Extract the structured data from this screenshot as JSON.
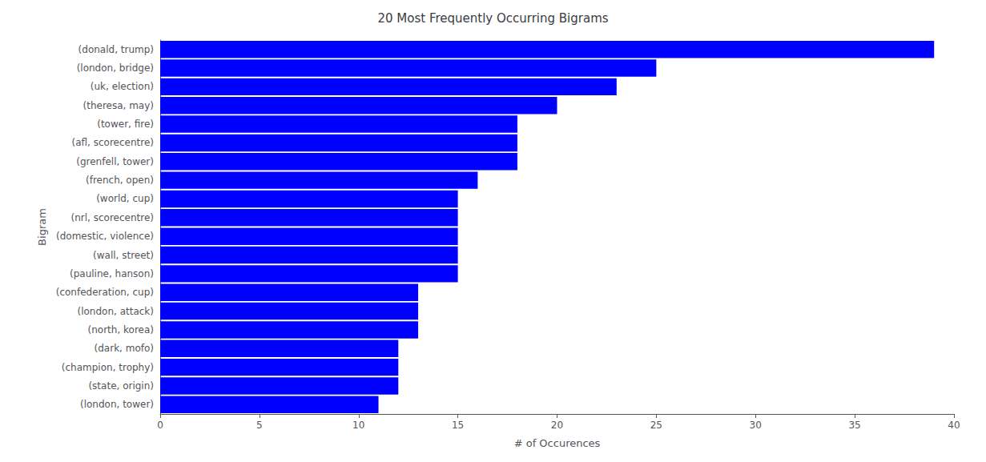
{
  "chart_data": {
    "type": "bar",
    "orientation": "horizontal",
    "title": "20 Most Frequently Occurring Bigrams",
    "xlabel": "# of Occurences",
    "ylabel": "Bigram",
    "categories": [
      "(donald, trump)",
      "(london, bridge)",
      "(uk, election)",
      "(theresa, may)",
      "(tower, fire)",
      "(afl, scorecentre)",
      "(grenfell, tower)",
      "(french, open)",
      "(world, cup)",
      "(nrl, scorecentre)",
      "(domestic, violence)",
      "(wall, street)",
      "(pauline, hanson)",
      "(confederation, cup)",
      "(london, attack)",
      "(north, korea)",
      "(dark, mofo)",
      "(champion, trophy)",
      "(state, origin)",
      "(london, tower)"
    ],
    "values": [
      39,
      25,
      23,
      20,
      18,
      18,
      18,
      16,
      15,
      15,
      15,
      15,
      15,
      13,
      13,
      13,
      12,
      12,
      12,
      11
    ],
    "color": "#0000ff",
    "xlim": [
      0,
      40
    ],
    "xticks": [
      0,
      5,
      10,
      15,
      20,
      25,
      30,
      35,
      40
    ],
    "grid": false
  }
}
